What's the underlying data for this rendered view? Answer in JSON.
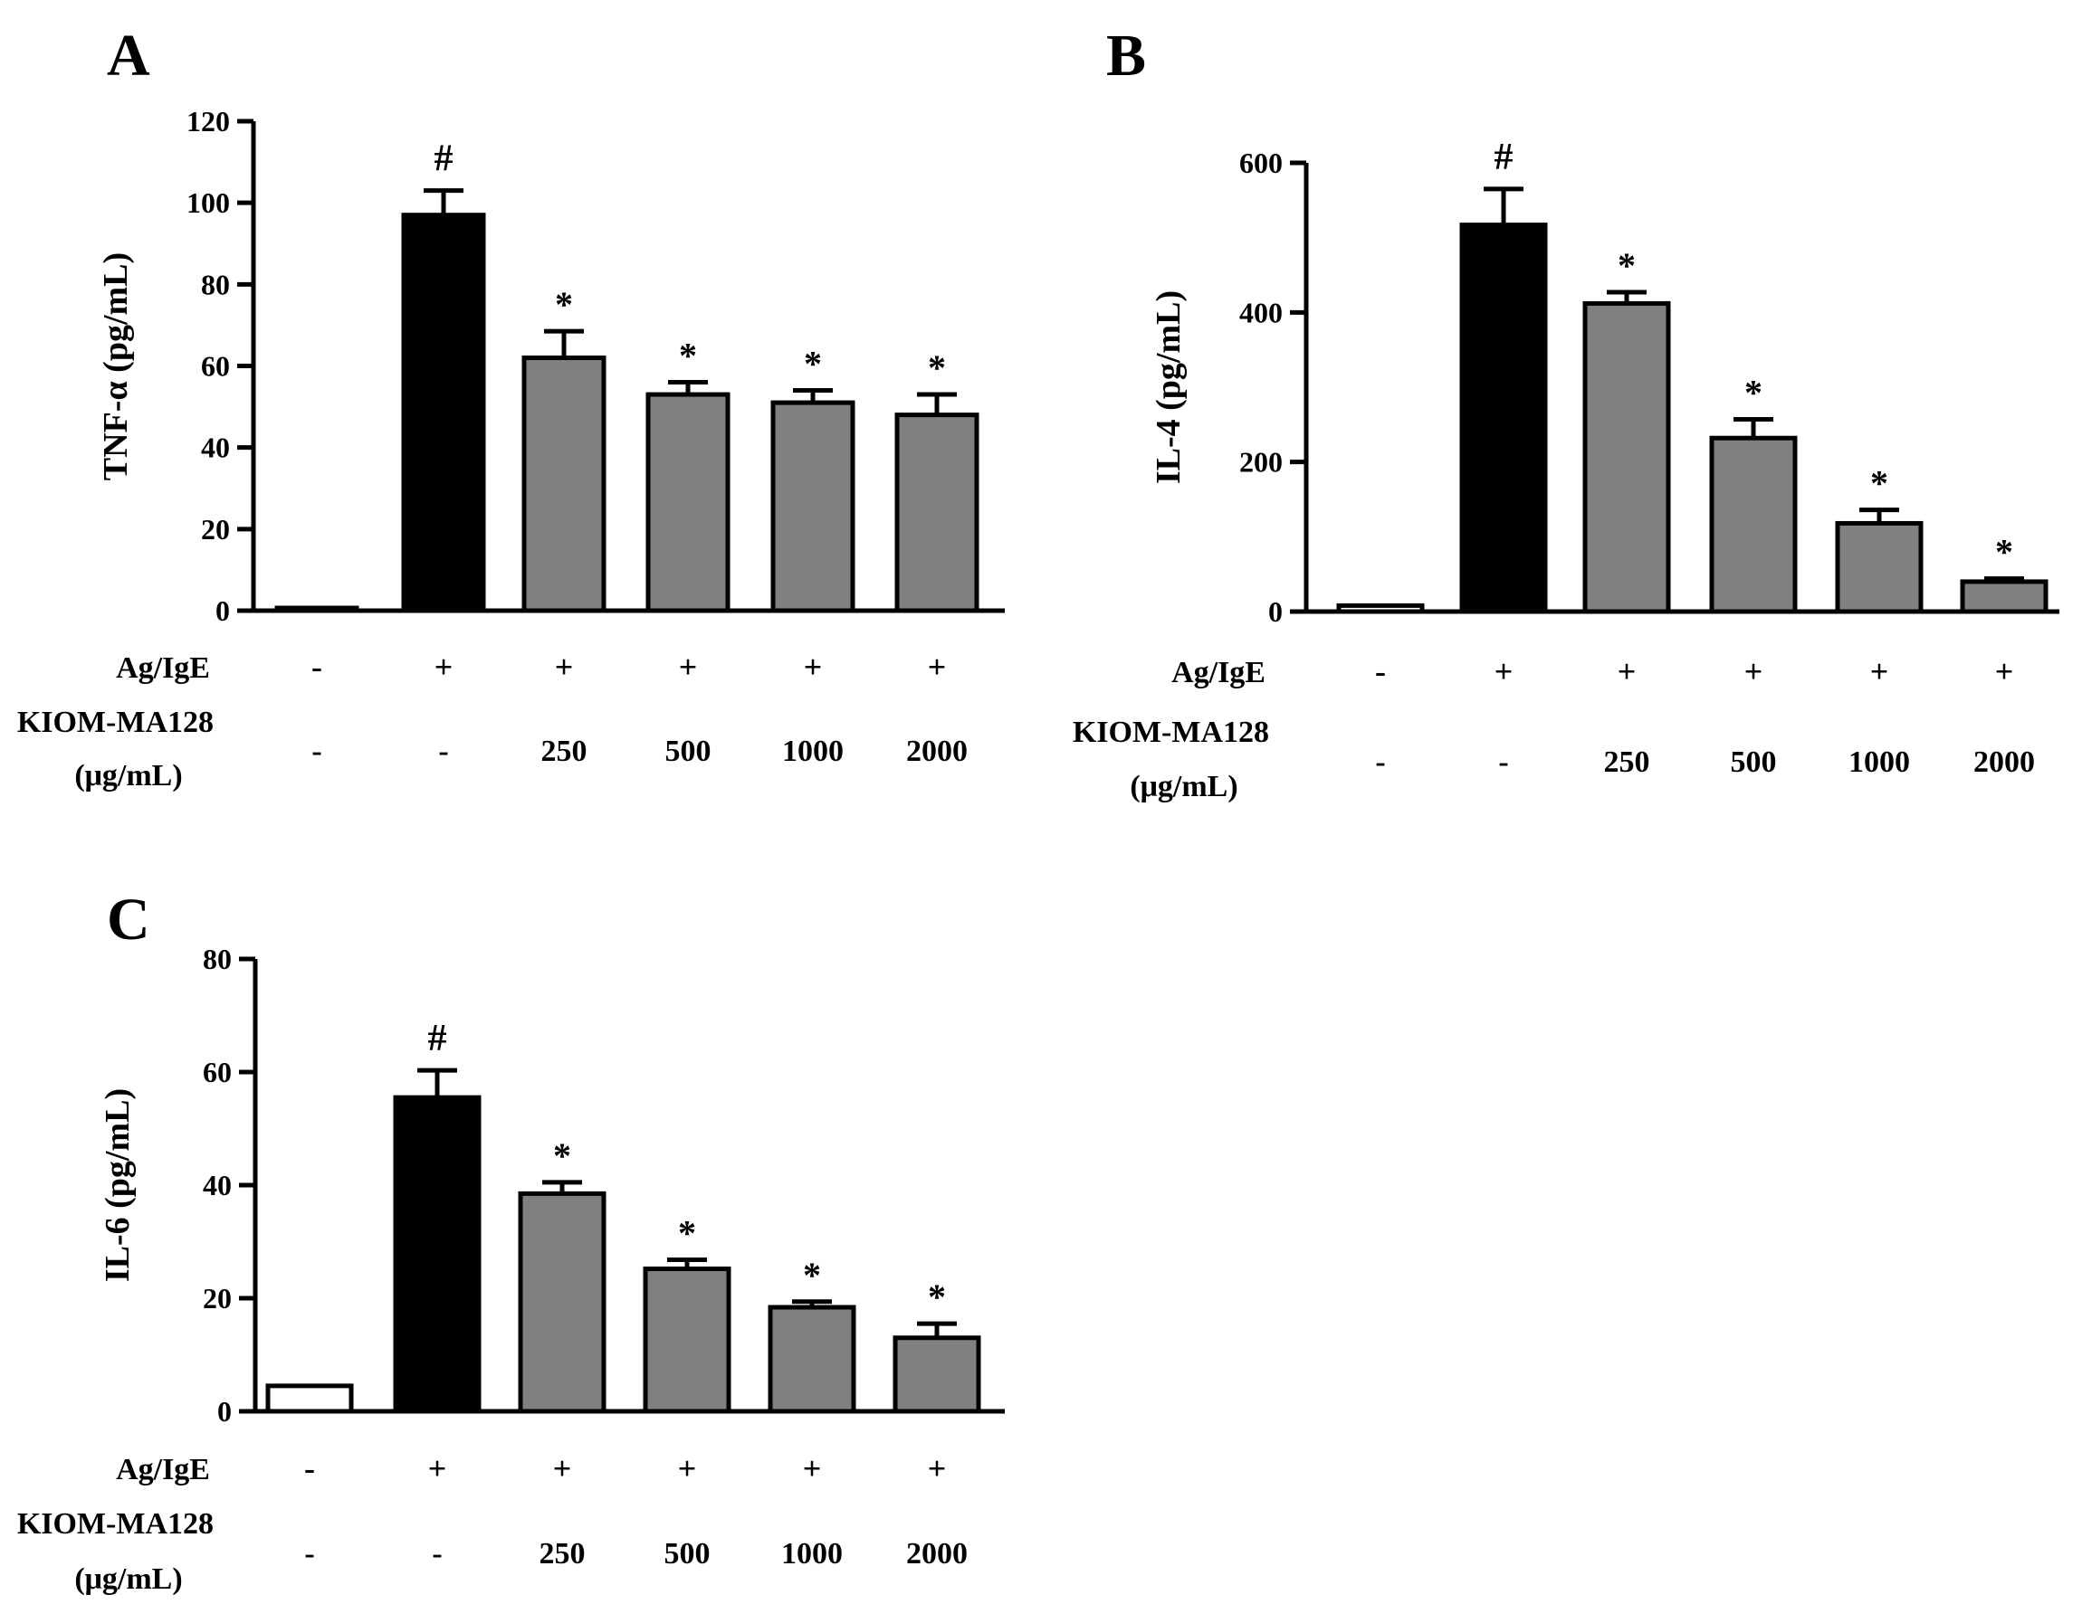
{
  "colors": {
    "control": "#ffffff",
    "antigen": "#000000",
    "treated": "#808080",
    "axis": "#000000"
  },
  "chart_data": [
    {
      "panel": "A",
      "type": "bar",
      "ylabel": "TNF-α (pg/mL)",
      "ylim": [
        0,
        120
      ],
      "yticks": [
        "0",
        "20",
        "40",
        "60",
        "80",
        "100",
        "120"
      ],
      "row1_label": "Ag/IgE",
      "row1": [
        "-",
        "+",
        "+",
        "+",
        "+",
        "+"
      ],
      "row2_label": [
        "KIOM-MA128",
        "(μg/mL)"
      ],
      "row2": [
        "-",
        "-",
        "250",
        "500",
        "1000",
        "2000"
      ],
      "values": [
        0,
        97,
        62,
        53,
        51,
        48
      ],
      "errors": [
        0,
        6,
        6.5,
        3,
        3,
        5
      ],
      "fills": [
        "control",
        "antigen",
        "treated",
        "treated",
        "treated",
        "treated"
      ],
      "annotations": [
        "",
        "#",
        "*",
        "*",
        "*",
        "*"
      ]
    },
    {
      "panel": "B",
      "type": "bar",
      "ylabel": "IL-4 (pg/mL)",
      "ylim": [
        0,
        600
      ],
      "yticks": [
        "0",
        "200",
        "400",
        "600"
      ],
      "row1_label": "Ag/IgE",
      "row1": [
        "-",
        "+",
        "+",
        "+",
        "+",
        "+"
      ],
      "row2_label": [
        "KIOM-MA128",
        "(μg/mL)"
      ],
      "row2": [
        "-",
        "-",
        "250",
        "500",
        "1000",
        "2000"
      ],
      "values": [
        8,
        517,
        412,
        232,
        118,
        40
      ],
      "errors": [
        0,
        48,
        15,
        25,
        18,
        4
      ],
      "fills": [
        "control",
        "antigen",
        "treated",
        "treated",
        "treated",
        "treated"
      ],
      "annotations": [
        "",
        "#",
        "*",
        "*",
        "*",
        "*"
      ]
    },
    {
      "panel": "C",
      "type": "bar",
      "ylabel": "IL-6 (pg/mL)",
      "ylim": [
        0,
        80
      ],
      "yticks": [
        "0",
        "20",
        "40",
        "60",
        "80"
      ],
      "row1_label": "Ag/IgE",
      "row1": [
        "-",
        "+",
        "+",
        "+",
        "+",
        "+"
      ],
      "row2_label": [
        "KIOM-MA128",
        "(μg/mL)"
      ],
      "row2": [
        "-",
        "-",
        "250",
        "500",
        "1000",
        "2000"
      ],
      "values": [
        4.5,
        55.5,
        38.5,
        25.2,
        18.4,
        13
      ],
      "errors": [
        0,
        4.8,
        2,
        1.6,
        1,
        2.5
      ],
      "fills": [
        "control",
        "antigen",
        "treated",
        "treated",
        "treated",
        "treated"
      ],
      "annotations": [
        "",
        "#",
        "*",
        "*",
        "*",
        "*"
      ]
    }
  ]
}
